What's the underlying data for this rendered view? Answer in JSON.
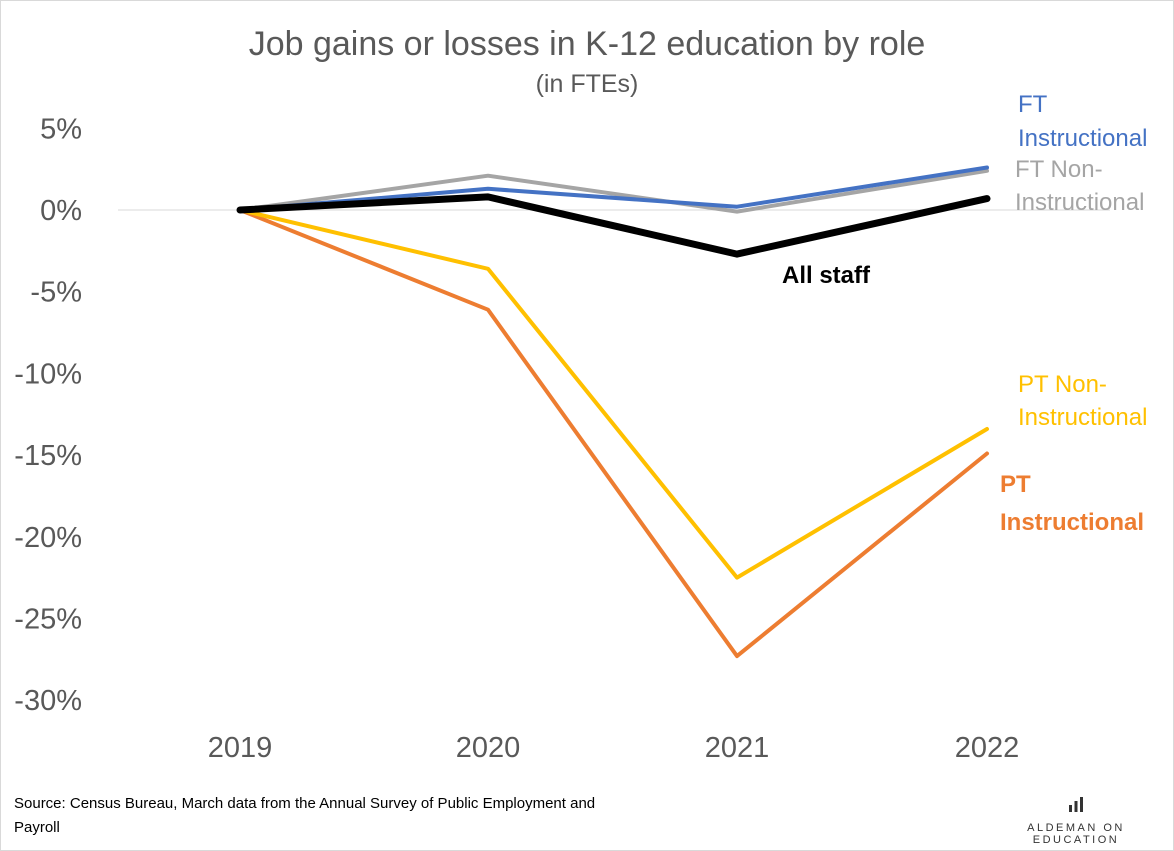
{
  "chart_data": {
    "type": "line",
    "title": "Job gains or losses in K-12 education by role",
    "subtitle": "(in FTEs)",
    "categories": [
      "2019",
      "2020",
      "2021",
      "2022"
    ],
    "y_ticks": [
      5,
      0,
      -5,
      -10,
      -15,
      -20,
      -25,
      -30
    ],
    "y_tick_labels": [
      "5%",
      "0%",
      "-5%",
      "-10%",
      "-15%",
      "-20%",
      "-25%",
      "-30%"
    ],
    "ylim": [
      -30,
      5
    ],
    "grid": false,
    "legend": "none",
    "series": [
      {
        "key": "ft_instr",
        "label_lines": [
          "FT",
          "Instructional"
        ],
        "color": "#4472C4",
        "values": [
          0,
          1.3,
          0.2,
          2.6
        ],
        "width": 4,
        "bold": false
      },
      {
        "key": "ft_noninstr",
        "label_lines": [
          "FT Non-",
          "Instructional"
        ],
        "color": "#A5A5A5",
        "values": [
          0,
          2.1,
          -0.1,
          2.4
        ],
        "width": 4,
        "bold": false
      },
      {
        "key": "all_staff",
        "label_lines": [
          "All staff"
        ],
        "color": "#000000",
        "values": [
          0,
          0.8,
          -2.7,
          0.7
        ],
        "width": 7,
        "bold": true
      },
      {
        "key": "pt_noninstr",
        "label_lines": [
          "PT Non-",
          "Instructional"
        ],
        "color": "#FFC000",
        "values": [
          0,
          -3.6,
          -22.5,
          -13.4
        ],
        "width": 4,
        "bold": false
      },
      {
        "key": "pt_instr",
        "label_lines": [
          "PT",
          "Instructional"
        ],
        "color": "#ED7D31",
        "values": [
          0,
          -6.1,
          -27.3,
          -14.9
        ],
        "width": 4,
        "bold": true
      }
    ]
  },
  "footer": {
    "source": "Source: Census Bureau, March data from the Annual Survey of Public Employment and Payroll",
    "brand": "ALDEMAN ON EDUCATION"
  },
  "icons": {
    "brand_icon": "bar-chart-icon"
  }
}
